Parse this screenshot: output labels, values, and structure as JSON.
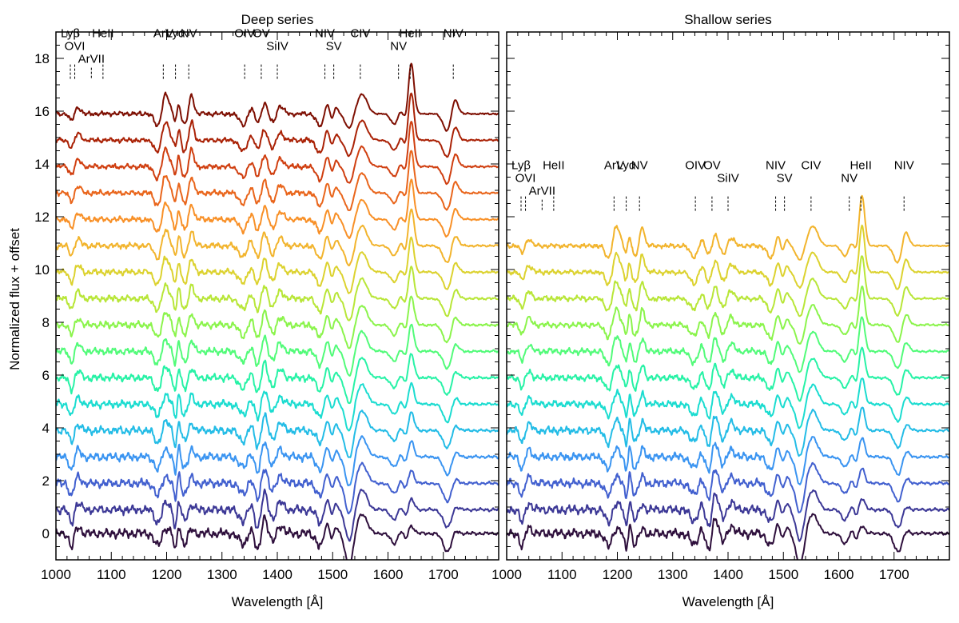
{
  "chart_data": {
    "type": "line",
    "ylabel": "Normalized flux + offset",
    "xlabel": "Wavelength [Å]",
    "ylim": [
      -1,
      19
    ],
    "yticks": [
      0,
      2,
      4,
      6,
      8,
      10,
      12,
      14,
      16,
      18
    ],
    "xticks": [
      1000,
      1100,
      1200,
      1300,
      1400,
      1500,
      1600,
      1700
    ],
    "colors_deep": [
      "#2e0f3c",
      "#3c3896",
      "#4260cf",
      "#3a94f1",
      "#23bce6",
      "#1bdcd0",
      "#27f2a6",
      "#52fb79",
      "#8bf44c",
      "#b8e638",
      "#dcd22f",
      "#f2b42d",
      "#f89027",
      "#e9651b",
      "#d03f10",
      "#aa2206",
      "#7e0f02"
    ],
    "colors_shallow": [
      "#2e0f3c",
      "#3c3896",
      "#4260cf",
      "#3a94f1",
      "#23bce6",
      "#1bdcd0",
      "#27f2a6",
      "#52fb79",
      "#8bf44c",
      "#b8e638",
      "#dcd22f",
      "#f2b42d"
    ],
    "panels": [
      {
        "title": "Deep series",
        "xlim": [
          1000,
          1800
        ],
        "series_count": 17,
        "offsets": [
          0,
          0.9,
          1.9,
          2.9,
          3.9,
          4.9,
          5.9,
          6.9,
          7.9,
          8.9,
          9.9,
          10.9,
          11.9,
          12.9,
          13.9,
          14.9,
          15.9
        ],
        "line_labels": [
          {
            "text": "Lyβ",
            "wavelength": 1026,
            "row": 0
          },
          {
            "text": "OVI",
            "wavelength": 1034,
            "row": 1
          },
          {
            "text": "ArVII",
            "wavelength": 1064,
            "row": 2
          },
          {
            "text": "HeII",
            "wavelength": 1085,
            "row": 0
          },
          {
            "text": "ArV",
            "wavelength": 1194,
            "row": 0
          },
          {
            "text": "Lyα",
            "wavelength": 1216,
            "row": 0
          },
          {
            "text": "NV",
            "wavelength": 1240,
            "row": 0
          },
          {
            "text": "OIV",
            "wavelength": 1341,
            "row": 0
          },
          {
            "text": "OV",
            "wavelength": 1371,
            "row": 0
          },
          {
            "text": "SiIV",
            "wavelength": 1400,
            "row": 1
          },
          {
            "text": "NIV",
            "wavelength": 1486,
            "row": 0
          },
          {
            "text": "SV",
            "wavelength": 1502,
            "row": 1
          },
          {
            "text": "CIV",
            "wavelength": 1550,
            "row": 0
          },
          {
            "text": "NV",
            "wavelength": 1619,
            "row": 1
          },
          {
            "text": "HeII",
            "wavelength": 1640,
            "row": 0
          },
          {
            "text": "NIV",
            "wavelength": 1718,
            "row": 0
          }
        ]
      },
      {
        "title": "Shallow series",
        "xlim": [
          1000,
          1800
        ],
        "series_count": 12,
        "offsets": [
          0,
          0.9,
          1.9,
          2.9,
          3.9,
          4.9,
          5.9,
          6.9,
          7.9,
          8.9,
          9.9,
          10.9
        ],
        "line_labels": [
          {
            "text": "Lyβ",
            "wavelength": 1026,
            "row": 0
          },
          {
            "text": "OVI",
            "wavelength": 1034,
            "row": 1
          },
          {
            "text": "ArVII",
            "wavelength": 1064,
            "row": 2
          },
          {
            "text": "HeII",
            "wavelength": 1085,
            "row": 0
          },
          {
            "text": "ArV",
            "wavelength": 1194,
            "row": 0
          },
          {
            "text": "Lyα",
            "wavelength": 1216,
            "row": 0
          },
          {
            "text": "NV",
            "wavelength": 1240,
            "row": 0
          },
          {
            "text": "OIV",
            "wavelength": 1341,
            "row": 0
          },
          {
            "text": "OV",
            "wavelength": 1371,
            "row": 0
          },
          {
            "text": "SiIV",
            "wavelength": 1400,
            "row": 1
          },
          {
            "text": "NIV",
            "wavelength": 1486,
            "row": 0
          },
          {
            "text": "SV",
            "wavelength": 1502,
            "row": 1
          },
          {
            "text": "CIV",
            "wavelength": 1550,
            "row": 0
          },
          {
            "text": "NV",
            "wavelength": 1619,
            "row": 1
          },
          {
            "text": "HeII",
            "wavelength": 1640,
            "row": 0
          },
          {
            "text": "NIV",
            "wavelength": 1718,
            "row": 0
          }
        ]
      }
    ]
  }
}
